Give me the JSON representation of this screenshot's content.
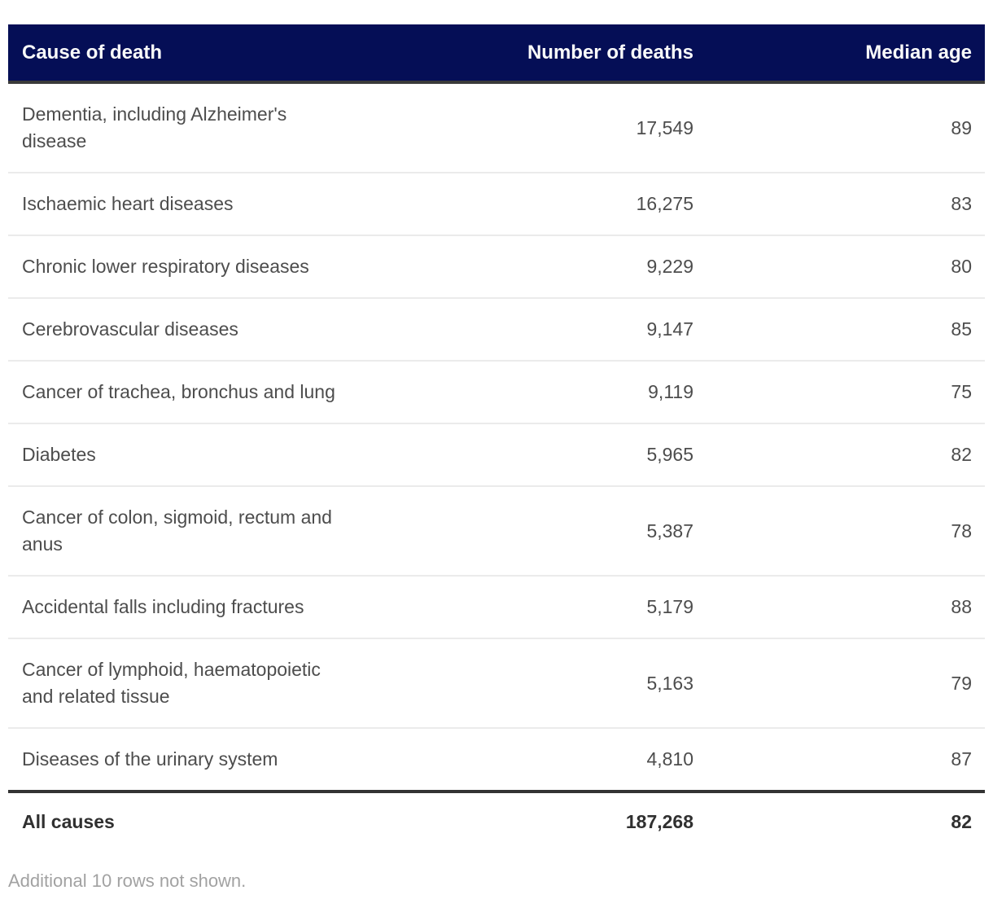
{
  "colors": {
    "header_background": "#050e56",
    "header_text": "#fafafa",
    "header_bottom_border": "#3a3a3a",
    "row_divider": "#ebebeb",
    "body_text": "#4d4d4d",
    "total_border": "#333333",
    "total_text": "#303030",
    "footnote_text": "#a2a2a2"
  },
  "table": {
    "columns": {
      "cause": "Cause of death",
      "deaths": "Number of deaths",
      "median_age": "Median age"
    },
    "rows": [
      {
        "cause": "Dementia, including Alzheimer's disease",
        "deaths": "17,549",
        "median_age": "89"
      },
      {
        "cause": "Ischaemic heart diseases",
        "deaths": "16,275",
        "median_age": "83"
      },
      {
        "cause": "Chronic lower respiratory diseases",
        "deaths": "9,229",
        "median_age": "80"
      },
      {
        "cause": "Cerebrovascular diseases",
        "deaths": "9,147",
        "median_age": "85"
      },
      {
        "cause": "Cancer of trachea, bronchus and lung",
        "deaths": "9,119",
        "median_age": "75"
      },
      {
        "cause": "Diabetes",
        "deaths": "5,965",
        "median_age": "82"
      },
      {
        "cause": "Cancer of colon, sigmoid, rectum and anus",
        "deaths": "5,387",
        "median_age": "78"
      },
      {
        "cause": "Accidental falls including fractures",
        "deaths": "5,179",
        "median_age": "88"
      },
      {
        "cause": "Cancer of lymphoid, haematopoietic and related tissue",
        "deaths": "5,163",
        "median_age": "79"
      },
      {
        "cause": "Diseases of the urinary system",
        "deaths": "4,810",
        "median_age": "87"
      }
    ],
    "total": {
      "cause": "All causes",
      "deaths": "187,268",
      "median_age": "82"
    },
    "footnote": "Additional 10 rows not shown."
  },
  "chart_data": {
    "type": "table",
    "title": "",
    "columns": [
      "Cause of death",
      "Number of deaths",
      "Median age"
    ],
    "rows": [
      [
        "Dementia, including Alzheimer's disease",
        17549,
        89
      ],
      [
        "Ischaemic heart diseases",
        16275,
        83
      ],
      [
        "Chronic lower respiratory diseases",
        9229,
        80
      ],
      [
        "Cerebrovascular diseases",
        9147,
        85
      ],
      [
        "Cancer of trachea, bronchus and lung",
        9119,
        75
      ],
      [
        "Diabetes",
        5965,
        82
      ],
      [
        "Cancer of colon, sigmoid, rectum and anus",
        5387,
        78
      ],
      [
        "Accidental falls including fractures",
        5179,
        88
      ],
      [
        "Cancer of lymphoid, haematopoietic and related tissue",
        5163,
        79
      ],
      [
        "Diseases of the urinary system",
        4810,
        87
      ]
    ],
    "total_row": [
      "All causes",
      187268,
      82
    ],
    "note": "Additional 10 rows not shown."
  }
}
